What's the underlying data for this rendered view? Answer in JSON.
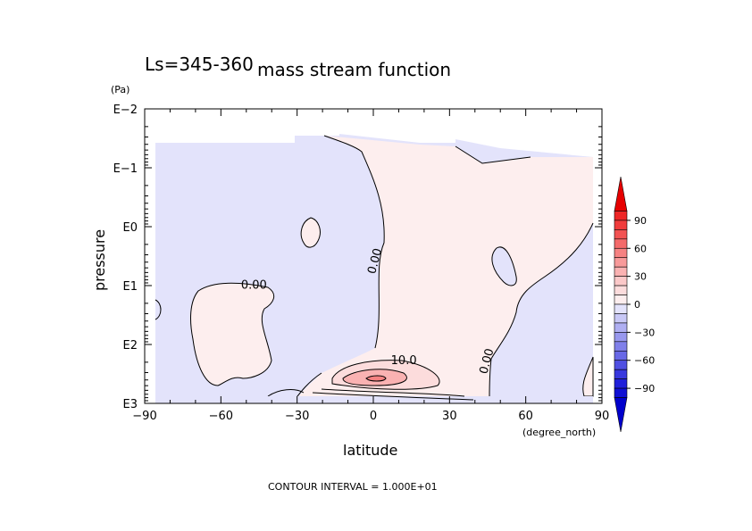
{
  "chart_data": {
    "type": "contour",
    "title": "mass stream function",
    "subtitle": "Ls=345-360",
    "xlabel": "latitude",
    "ylabel": "pressure",
    "x_unit": "(degree_north)",
    "y_unit": "(Pa)",
    "xlim": [
      -90,
      90
    ],
    "ylim_log10": [
      -2,
      3
    ],
    "x_ticks": [
      -90,
      -60,
      -30,
      0,
      30,
      60,
      90
    ],
    "x_tick_labels": [
      "−90",
      "−60",
      "−30",
      "0",
      "30",
      "60",
      "90"
    ],
    "y_ticks_log10": [
      -2,
      -1,
      0,
      1,
      2,
      3
    ],
    "y_tick_labels": [
      "E−2",
      "E−1",
      "E0",
      "E1",
      "E2",
      "E3"
    ],
    "contour_interval_text": "CONTOUR INTERVAL = 1.000E+01",
    "contour_labels": [
      {
        "text": "0.00",
        "lat": -47,
        "log10p": 1.05
      },
      {
        "text": "0.00",
        "lat": 2,
        "log10p": 0.6
      },
      {
        "text": "10.0",
        "lat": 12,
        "log10p": 2.33
      },
      {
        "text": "0.00",
        "lat": 46,
        "log10p": 2.3
      }
    ],
    "colorbar": {
      "labels": [
        "90",
        "60",
        "30",
        "0",
        "−30",
        "−60",
        "−90"
      ],
      "values": [
        90,
        60,
        30,
        0,
        -30,
        -60,
        -90
      ],
      "bins": [
        {
          "min": 100,
          "max": 110,
          "color": "#e60000"
        },
        {
          "min": 90,
          "max": 100,
          "color": "#ee2626"
        },
        {
          "min": 80,
          "max": 90,
          "color": "#f03c3c"
        },
        {
          "min": 70,
          "max": 80,
          "color": "#f25252"
        },
        {
          "min": 60,
          "max": 70,
          "color": "#f46a6a"
        },
        {
          "min": 50,
          "max": 60,
          "color": "#f68282"
        },
        {
          "min": 40,
          "max": 50,
          "color": "#f89a9a"
        },
        {
          "min": 30,
          "max": 40,
          "color": "#fab2b2"
        },
        {
          "min": 20,
          "max": 30,
          "color": "#fbc8c8"
        },
        {
          "min": 10,
          "max": 20,
          "color": "#fcdcdc"
        },
        {
          "min": 0,
          "max": 10,
          "color": "#fdeeee"
        },
        {
          "min": -10,
          "max": 0,
          "color": "#e3e3fb"
        },
        {
          "min": -20,
          "max": -10,
          "color": "#c8c8f6"
        },
        {
          "min": -30,
          "max": -20,
          "color": "#afaff2"
        },
        {
          "min": -40,
          "max": -30,
          "color": "#9898ee"
        },
        {
          "min": -50,
          "max": -40,
          "color": "#8080ea"
        },
        {
          "min": -60,
          "max": -50,
          "color": "#6868e6"
        },
        {
          "min": -70,
          "max": -60,
          "color": "#5050e2"
        },
        {
          "min": -80,
          "max": -70,
          "color": "#3838de"
        },
        {
          "min": -90,
          "max": -80,
          "color": "#2020da"
        },
        {
          "min": -100,
          "max": -90,
          "color": "#1010d4"
        },
        {
          "min": -110,
          "max": -100,
          "color": "#0000cc"
        }
      ]
    },
    "colors": {
      "positive_fill": "#fdeeee",
      "negative_fill": "#e3e3fb",
      "core_fill_1": "#fcdcdc",
      "core_fill_2": "#fab2b2"
    }
  }
}
